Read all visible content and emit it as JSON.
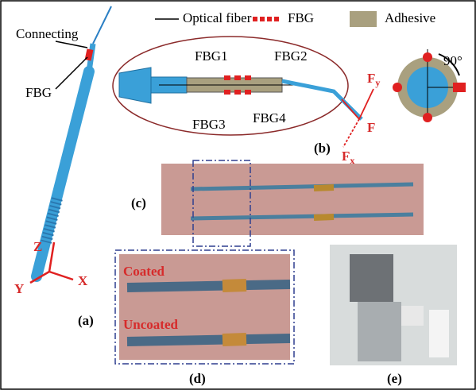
{
  "legend": {
    "fiber": "Optical fiber",
    "fbg": "FBG",
    "adhesive": "Adhesive"
  },
  "panel_a": {
    "connecting": "Connecting",
    "fbg": "FBG",
    "label": "(a)",
    "axes": {
      "z": "Z",
      "y": "Y",
      "x": "X"
    }
  },
  "panel_b": {
    "fbg1": "FBG1",
    "fbg2": "FBG2",
    "fbg3": "FBG3",
    "fbg4": "FBG4",
    "angle": "90°",
    "fy": {
      "base": "F",
      "sub": "y"
    },
    "f": "F",
    "fx": {
      "base": "F",
      "sub": "x"
    },
    "label": "(b)"
  },
  "panel_c": {
    "label": "(c)"
  },
  "panel_d": {
    "coated": "Coated",
    "uncoated": "Uncoated",
    "label": "(d)"
  },
  "panel_e": {
    "label": "(e)"
  }
}
